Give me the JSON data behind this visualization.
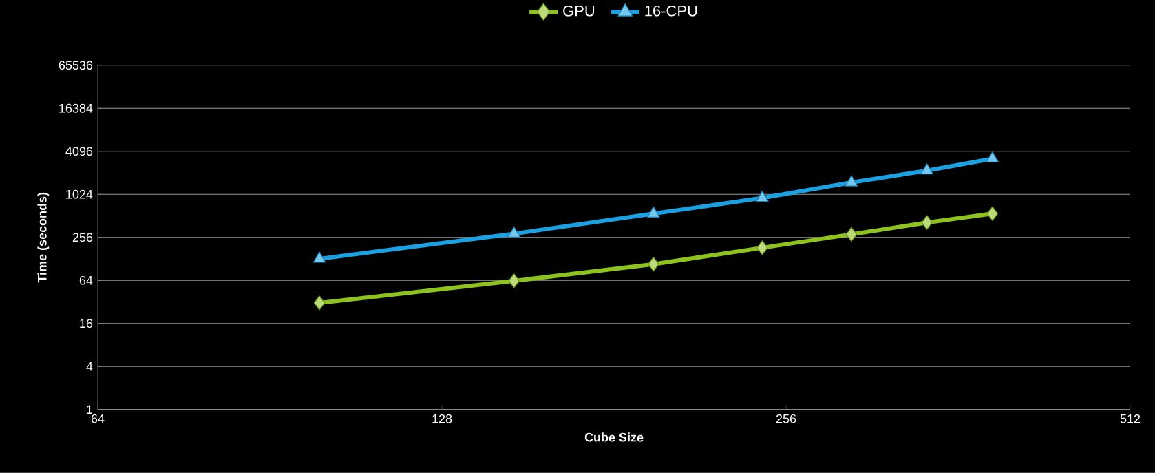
{
  "chart_data": {
    "type": "line",
    "xlabel": "Cube Size",
    "ylabel": "Time (seconds)",
    "x": [
      100,
      148,
      196,
      244,
      292,
      340,
      388
    ],
    "series": [
      {
        "name": "GPU",
        "color": "#8dc21f",
        "marker": "diamond",
        "values": [
          31,
          63,
          108,
          183,
          282,
          413,
          550
        ]
      },
      {
        "name": "16-CPU",
        "color": "#1ba1e2",
        "marker": "triangle",
        "values": [
          128,
          288,
          550,
          910,
          1500,
          2200,
          3230
        ]
      }
    ],
    "log": "xy",
    "xlim": [
      64,
      512
    ],
    "xticks": [
      64,
      128,
      256,
      512
    ],
    "ylim": [
      1,
      65536
    ],
    "yticks": [
      1,
      4,
      16,
      64,
      256,
      1024,
      4096,
      16384,
      65536
    ],
    "grid": "y",
    "legend": "top",
    "line_style": "solid"
  }
}
